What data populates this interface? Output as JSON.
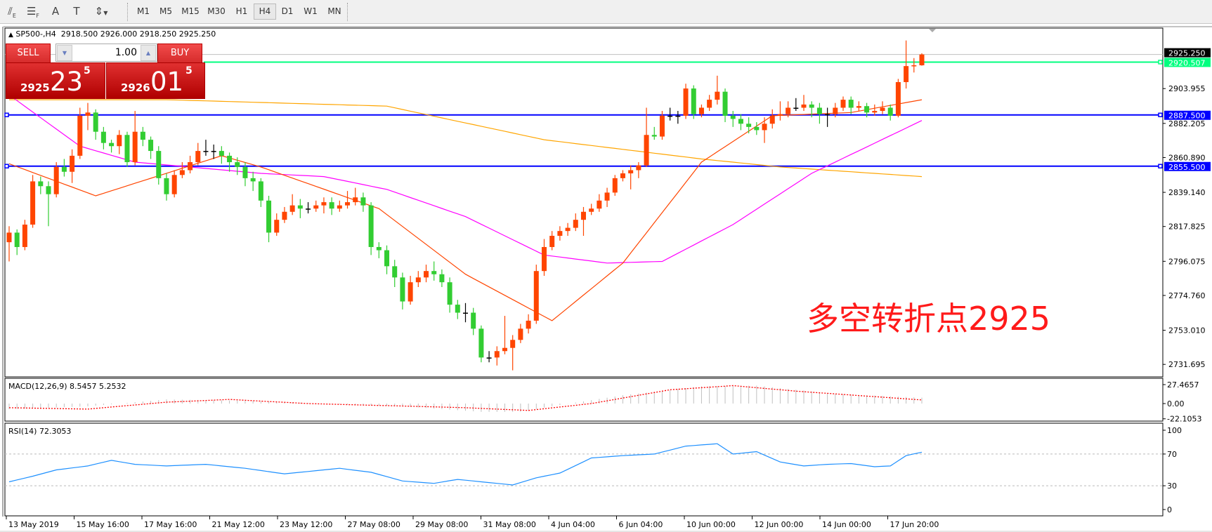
{
  "toolbar": {
    "tools": [
      {
        "icon": "fibonacci-expansion-icon",
        "label": "E"
      },
      {
        "icon": "fibonacci-fan-icon",
        "label": "F"
      },
      {
        "icon": "text-icon",
        "label": "A"
      },
      {
        "icon": "text-label-icon",
        "label": "T"
      },
      {
        "icon": "arrows-dropdown-icon",
        "label": ""
      }
    ],
    "timeframes": [
      "M1",
      "M5",
      "M15",
      "M30",
      "H1",
      "H4",
      "D1",
      "W1",
      "MN"
    ],
    "active_timeframe": "H4"
  },
  "chart_header": {
    "symbol": "SP500-,H4",
    "ohlc": "2918.500 2926.000 2918.250 2925.250"
  },
  "one_click": {
    "sell_label": "SELL",
    "buy_label": "BUY",
    "volume": "1.00",
    "sell_price": {
      "small": "2925",
      "big": "23",
      "sup": "5"
    },
    "buy_price": {
      "small": "2926",
      "big": "01",
      "sup": "5"
    }
  },
  "annotation": "多空转折点2925",
  "colors": {
    "bull": "#ff4500",
    "bear": "#32cd32",
    "doji": "#000000",
    "ma_fast": "#ff4500",
    "ma_mid": "#ff00ff",
    "ma_slow": "#ffa500",
    "level_line": "#0000ff",
    "ask_line": "#00ff7f",
    "bid_line": "#c0c0c0",
    "macd_hist": "#c0c0c0",
    "macd_signal": "#ff0000",
    "rsi": "#1e90ff",
    "annotation": "#ff1a1a"
  },
  "chart_data": {
    "type": "candlestick",
    "price_axis": {
      "ticks": [
        "2903.955",
        "2882.205",
        "2860.890",
        "2839.140",
        "2817.825",
        "2796.075",
        "2774.760",
        "2753.010",
        "2731.695"
      ],
      "range": [
        2731.695,
        2925.25
      ]
    },
    "price_labels": [
      {
        "value": 2925.25,
        "text": "2925.250",
        "kind": "bid"
      },
      {
        "value": 2920.507,
        "text": "2920.507",
        "kind": "ask"
      },
      {
        "value": 2887.5,
        "text": "2887.500",
        "kind": "level"
      },
      {
        "value": 2855.5,
        "text": "2855.500",
        "kind": "level"
      }
    ],
    "time_labels": [
      "13 May 2019",
      "15 May 16:00",
      "17 May 16:00",
      "21 May 12:00",
      "23 May 12:00",
      "27 May 08:00",
      "29 May 08:00",
      "31 May 08:00",
      "4 Jun 04:00",
      "6 Jun 04:00",
      "10 Jun 00:00",
      "12 Jun 00:00",
      "14 Jun 00:00",
      "17 Jun 20:00"
    ],
    "ohlc": [
      [
        2808,
        2818,
        2796,
        2814
      ],
      [
        2814,
        2816,
        2800,
        2805
      ],
      [
        2805,
        2822,
        2803,
        2819
      ],
      [
        2819,
        2850,
        2817,
        2846
      ],
      [
        2846,
        2849,
        2838,
        2843
      ],
      [
        2843,
        2846,
        2818,
        2838
      ],
      [
        2838,
        2858,
        2836,
        2855
      ],
      [
        2855,
        2860,
        2849,
        2852
      ],
      [
        2852,
        2866,
        2845,
        2862
      ],
      [
        2862,
        2892,
        2860,
        2887
      ],
      [
        2887,
        2895,
        2878,
        2889
      ],
      [
        2889,
        2891,
        2872,
        2877
      ],
      [
        2877,
        2880,
        2866,
        2870
      ],
      [
        2870,
        2872,
        2864,
        2868
      ],
      [
        2868,
        2878,
        2863,
        2875
      ],
      [
        2875,
        2877,
        2855,
        2858
      ],
      [
        2858,
        2890,
        2856,
        2877
      ],
      [
        2877,
        2880,
        2868,
        2872
      ],
      [
        2872,
        2874,
        2860,
        2865
      ],
      [
        2865,
        2868,
        2844,
        2848
      ],
      [
        2848,
        2851,
        2834,
        2838
      ],
      [
        2838,
        2853,
        2836,
        2850
      ],
      [
        2850,
        2858,
        2848,
        2853
      ],
      [
        2853,
        2862,
        2851,
        2858
      ],
      [
        2858,
        2870,
        2856,
        2865
      ],
      [
        2865,
        2872,
        2862,
        2865
      ],
      [
        2865,
        2869,
        2860,
        2865
      ],
      [
        2865,
        2868,
        2857,
        2862
      ],
      [
        2862,
        2864,
        2852,
        2858
      ],
      [
        2858,
        2861,
        2850,
        2855
      ],
      [
        2855,
        2858,
        2843,
        2848
      ],
      [
        2848,
        2852,
        2840,
        2846
      ],
      [
        2846,
        2848,
        2830,
        2834
      ],
      [
        2834,
        2837,
        2808,
        2814
      ],
      [
        2814,
        2826,
        2812,
        2822
      ],
      [
        2822,
        2830,
        2820,
        2827
      ],
      [
        2827,
        2838,
        2825,
        2831
      ],
      [
        2831,
        2835,
        2823,
        2829
      ],
      [
        2829,
        2833,
        2826,
        2829
      ],
      [
        2829,
        2834,
        2827,
        2831
      ],
      [
        2831,
        2836,
        2826,
        2833
      ],
      [
        2833,
        2836,
        2825,
        2829
      ],
      [
        2829,
        2834,
        2827,
        2831
      ],
      [
        2831,
        2840,
        2829,
        2833
      ],
      [
        2833,
        2842,
        2831,
        2836
      ],
      [
        2836,
        2839,
        2827,
        2831
      ],
      [
        2831,
        2833,
        2800,
        2805
      ],
      [
        2805,
        2808,
        2798,
        2803
      ],
      [
        2803,
        2806,
        2788,
        2793
      ],
      [
        2793,
        2797,
        2780,
        2786
      ],
      [
        2786,
        2789,
        2766,
        2771
      ],
      [
        2771,
        2787,
        2769,
        2783
      ],
      [
        2783,
        2790,
        2780,
        2786
      ],
      [
        2786,
        2794,
        2783,
        2790
      ],
      [
        2790,
        2796,
        2784,
        2788
      ],
      [
        2788,
        2791,
        2780,
        2783
      ],
      [
        2783,
        2786,
        2764,
        2769
      ],
      [
        2769,
        2772,
        2760,
        2764
      ],
      [
        2764,
        2770,
        2758,
        2764
      ],
      [
        2764,
        2767,
        2750,
        2754
      ],
      [
        2754,
        2756,
        2733,
        2736
      ],
      [
        2736,
        2740,
        2733,
        2736
      ],
      [
        2736,
        2743,
        2731,
        2740
      ],
      [
        2740,
        2762,
        2738,
        2742
      ],
      [
        2742,
        2750,
        2728,
        2747
      ],
      [
        2747,
        2757,
        2745,
        2754
      ],
      [
        2754,
        2763,
        2751,
        2759
      ],
      [
        2759,
        2794,
        2757,
        2790
      ],
      [
        2790,
        2810,
        2787,
        2805
      ],
      [
        2805,
        2815,
        2803,
        2812
      ],
      [
        2812,
        2818,
        2809,
        2815
      ],
      [
        2815,
        2820,
        2812,
        2817
      ],
      [
        2817,
        2826,
        2815,
        2822
      ],
      [
        2822,
        2830,
        2812,
        2827
      ],
      [
        2827,
        2832,
        2825,
        2829
      ],
      [
        2829,
        2838,
        2827,
        2834
      ],
      [
        2834,
        2842,
        2830,
        2839
      ],
      [
        2839,
        2850,
        2837,
        2848
      ],
      [
        2848,
        2853,
        2846,
        2851
      ],
      [
        2851,
        2856,
        2841,
        2853
      ],
      [
        2853,
        2858,
        2848,
        2856
      ],
      [
        2856,
        2892,
        2855,
        2875
      ],
      [
        2875,
        2880,
        2872,
        2874
      ],
      [
        2874,
        2890,
        2872,
        2887
      ],
      [
        2887,
        2892,
        2884,
        2887
      ],
      [
        2887,
        2890,
        2882,
        2887
      ],
      [
        2887,
        2907,
        2885,
        2904
      ],
      [
        2904,
        2906,
        2885,
        2888
      ],
      [
        2888,
        2894,
        2886,
        2892
      ],
      [
        2892,
        2900,
        2890,
        2897
      ],
      [
        2897,
        2912,
        2894,
        2902
      ],
      [
        2902,
        2904,
        2883,
        2887
      ],
      [
        2887,
        2890,
        2880,
        2885
      ],
      [
        2885,
        2888,
        2878,
        2882
      ],
      [
        2882,
        2886,
        2876,
        2880
      ],
      [
        2880,
        2883,
        2875,
        2878
      ],
      [
        2878,
        2886,
        2870,
        2882
      ],
      [
        2882,
        2891,
        2879,
        2887
      ],
      [
        2887,
        2896,
        2884,
        2888
      ],
      [
        2888,
        2896,
        2886,
        2892
      ],
      [
        2892,
        2898,
        2890,
        2892
      ],
      [
        2892,
        2900,
        2890,
        2894
      ],
      [
        2894,
        2896,
        2886,
        2892
      ],
      [
        2892,
        2895,
        2882,
        2888
      ],
      [
        2888,
        2892,
        2880,
        2888
      ],
      [
        2888,
        2895,
        2886,
        2892
      ],
      [
        2892,
        2899,
        2890,
        2897
      ],
      [
        2897,
        2899,
        2888,
        2892
      ],
      [
        2892,
        2896,
        2890,
        2893
      ],
      [
        2893,
        2895,
        2886,
        2889
      ],
      [
        2889,
        2894,
        2887,
        2890
      ],
      [
        2890,
        2896,
        2888,
        2892
      ],
      [
        2892,
        2894,
        2884,
        2887
      ],
      [
        2887,
        2910,
        2886,
        2908
      ],
      [
        2908,
        2934,
        2904,
        2918
      ],
      [
        2918,
        2923,
        2914,
        2918.5
      ],
      [
        2918.5,
        2926,
        2918.25,
        2925.25
      ]
    ],
    "moving_averages": {
      "fast": [
        [
          0,
          2857
        ],
        [
          11,
          2837
        ],
        [
          27,
          2862
        ],
        [
          32,
          2855
        ],
        [
          47,
          2829
        ],
        [
          58,
          2788
        ],
        [
          69,
          2759
        ],
        [
          78,
          2795
        ],
        [
          88,
          2858
        ],
        [
          97,
          2887
        ],
        [
          107,
          2889
        ],
        [
          116,
          2897
        ]
      ],
      "mid": [
        [
          0,
          2900
        ],
        [
          9,
          2868
        ],
        [
          16,
          2858
        ],
        [
          32,
          2851
        ],
        [
          40,
          2849
        ],
        [
          48,
          2841
        ],
        [
          58,
          2824
        ],
        [
          68,
          2800
        ],
        [
          76,
          2795
        ],
        [
          83,
          2796
        ],
        [
          92,
          2819
        ],
        [
          102,
          2851
        ],
        [
          116,
          2884
        ]
      ],
      "slow": [
        [
          0,
          2897
        ],
        [
          20,
          2897
        ],
        [
          48,
          2893
        ],
        [
          68,
          2872
        ],
        [
          88,
          2860
        ],
        [
          98,
          2855
        ],
        [
          116,
          2849
        ]
      ]
    },
    "macd": {
      "label": "MACD(12,26,9) 8.5457 5.2532",
      "ticks": [
        "27.4657",
        "0.00",
        "-22.1053"
      ],
      "range": [
        -22.1053,
        27.4657
      ],
      "histogram": [
        [
          0,
          -8
        ],
        [
          10,
          -4
        ],
        [
          20,
          6
        ],
        [
          30,
          4
        ],
        [
          40,
          0
        ],
        [
          50,
          -4
        ],
        [
          60,
          -12
        ],
        [
          65,
          -12
        ],
        [
          70,
          -2
        ],
        [
          78,
          12
        ],
        [
          88,
          25
        ],
        [
          95,
          26
        ],
        [
          105,
          14
        ],
        [
          116,
          8.5457
        ]
      ],
      "signal": [
        [
          0,
          -6
        ],
        [
          10,
          -8
        ],
        [
          20,
          2
        ],
        [
          28,
          6
        ],
        [
          38,
          0
        ],
        [
          48,
          -3
        ],
        [
          58,
          -6
        ],
        [
          66,
          -10
        ],
        [
          74,
          0
        ],
        [
          84,
          20
        ],
        [
          92,
          26
        ],
        [
          100,
          18
        ],
        [
          116,
          5.2532
        ]
      ]
    },
    "rsi": {
      "label": "RSI(14) 72.3053",
      "ticks": [
        "100",
        "70",
        "30",
        "0"
      ],
      "levels": [
        70,
        30
      ],
      "values": [
        [
          0,
          35
        ],
        [
          3,
          42
        ],
        [
          6,
          50
        ],
        [
          10,
          55
        ],
        [
          13,
          62
        ],
        [
          16,
          57
        ],
        [
          20,
          55
        ],
        [
          25,
          57
        ],
        [
          30,
          52
        ],
        [
          35,
          45
        ],
        [
          38,
          48
        ],
        [
          42,
          52
        ],
        [
          46,
          47
        ],
        [
          50,
          36
        ],
        [
          54,
          33
        ],
        [
          57,
          38
        ],
        [
          60,
          35
        ],
        [
          64,
          31
        ],
        [
          67,
          40
        ],
        [
          70,
          46
        ],
        [
          74,
          65
        ],
        [
          78,
          68
        ],
        [
          82,
          70
        ],
        [
          86,
          80
        ],
        [
          90,
          83
        ],
        [
          92,
          70
        ],
        [
          95,
          73
        ],
        [
          98,
          60
        ],
        [
          101,
          55
        ],
        [
          104,
          57
        ],
        [
          107,
          58
        ],
        [
          110,
          54
        ],
        [
          112,
          55
        ],
        [
          114,
          68
        ],
        [
          116,
          72.3053
        ]
      ]
    }
  }
}
